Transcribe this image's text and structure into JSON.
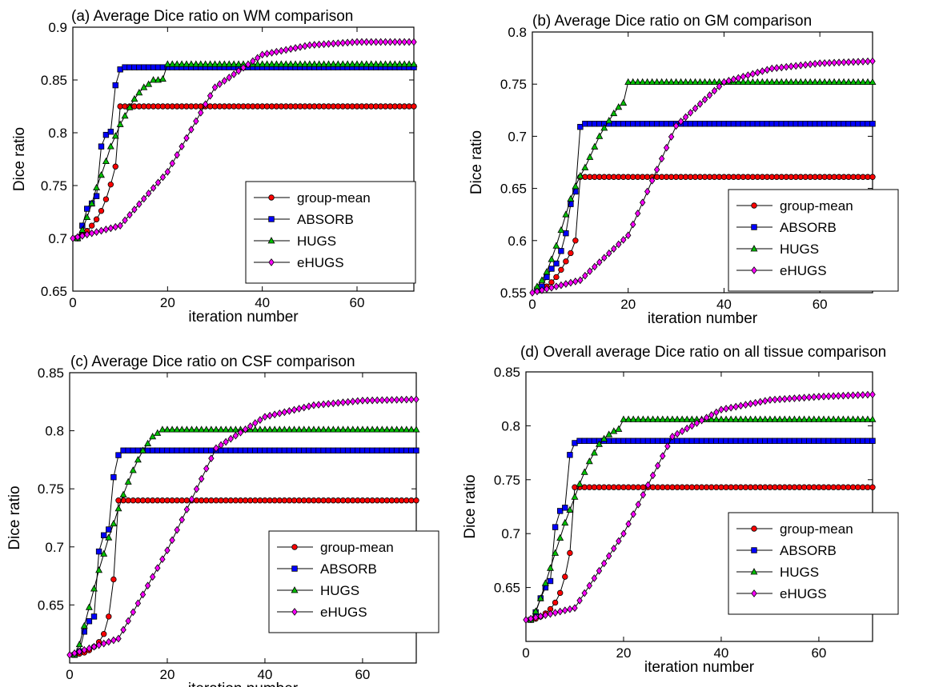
{
  "chart_data": [
    {
      "type": "line",
      "title": "(a) Average Dice ratio on WM comparison",
      "xlabel": "iteration number",
      "ylabel": "Dice ratio",
      "xlim": [
        0,
        72
      ],
      "ylim": [
        0.65,
        0.9
      ],
      "xticks": [
        "0",
        "20",
        "40",
        "60"
      ],
      "yticks": [
        "0.65",
        "0.7",
        "0.75",
        "0.8",
        "0.85",
        "0.9"
      ],
      "legend_position": "lower-right",
      "series": [
        {
          "name": "group-mean",
          "color": "#ff0000",
          "marker": "circle",
          "x": [
            1,
            2,
            3,
            4,
            5,
            6,
            7,
            8,
            9,
            10,
            72
          ],
          "y": [
            0.7,
            0.703,
            0.707,
            0.712,
            0.718,
            0.726,
            0.737,
            0.751,
            0.768,
            0.825,
            0.825
          ]
        },
        {
          "name": "ABSORB",
          "color": "#0000ff",
          "marker": "square",
          "x": [
            1,
            2,
            3,
            4,
            5,
            6,
            7,
            8,
            9,
            10,
            11,
            72
          ],
          "y": [
            0.7,
            0.712,
            0.728,
            0.733,
            0.74,
            0.787,
            0.798,
            0.801,
            0.845,
            0.86,
            0.862,
            0.862
          ]
        },
        {
          "name": "HUGS",
          "color": "#00c000",
          "marker": "triangle",
          "x": [
            1,
            2,
            3,
            4,
            5,
            6,
            7,
            8,
            9,
            10,
            11,
            12,
            13,
            14,
            15,
            16,
            17,
            18,
            19,
            20,
            72
          ],
          "y": [
            0.7,
            0.708,
            0.72,
            0.733,
            0.748,
            0.76,
            0.773,
            0.787,
            0.797,
            0.808,
            0.816,
            0.824,
            0.832,
            0.838,
            0.843,
            0.846,
            0.85,
            0.85,
            0.851,
            0.865,
            0.865
          ]
        },
        {
          "name": "eHUGS",
          "color": "#ff00ff",
          "marker": "diamond",
          "x": [
            0,
            10,
            20,
            30,
            40,
            50,
            60,
            72
          ],
          "y": [
            0.7,
            0.712,
            0.763,
            0.843,
            0.874,
            0.883,
            0.886,
            0.886
          ]
        }
      ]
    },
    {
      "type": "line",
      "title": "(b) Average Dice ratio on GM comparison",
      "xlabel": "iteration number",
      "ylabel": "Dice ratio",
      "xlim": [
        0,
        71
      ],
      "ylim": [
        0.55,
        0.8
      ],
      "xticks": [
        "0",
        "20",
        "40",
        "60"
      ],
      "yticks": [
        "0.55",
        "0.6",
        "0.65",
        "0.7",
        "0.75",
        "0.8"
      ],
      "legend_position": "lower-right",
      "series": [
        {
          "name": "group-mean",
          "color": "#ff0000",
          "marker": "circle",
          "x": [
            1,
            2,
            3,
            4,
            5,
            6,
            7,
            8,
            9,
            10,
            71
          ],
          "y": [
            0.552,
            0.554,
            0.556,
            0.56,
            0.565,
            0.572,
            0.58,
            0.588,
            0.6,
            0.661,
            0.661
          ]
        },
        {
          "name": "ABSORB",
          "color": "#0000ff",
          "marker": "square",
          "x": [
            1,
            2,
            3,
            4,
            5,
            6,
            7,
            8,
            9,
            10,
            11,
            71
          ],
          "y": [
            0.553,
            0.556,
            0.565,
            0.573,
            0.578,
            0.59,
            0.607,
            0.635,
            0.647,
            0.709,
            0.712,
            0.712
          ]
        },
        {
          "name": "HUGS",
          "color": "#00c000",
          "marker": "triangle",
          "x": [
            1,
            2,
            3,
            4,
            5,
            6,
            7,
            8,
            9,
            10,
            11,
            12,
            13,
            14,
            15,
            16,
            17,
            18,
            19,
            20,
            71
          ],
          "y": [
            0.556,
            0.562,
            0.57,
            0.582,
            0.595,
            0.61,
            0.625,
            0.64,
            0.652,
            0.662,
            0.67,
            0.68,
            0.69,
            0.7,
            0.708,
            0.715,
            0.722,
            0.728,
            0.732,
            0.752,
            0.752
          ]
        },
        {
          "name": "eHUGS",
          "color": "#ff00ff",
          "marker": "diamond",
          "x": [
            0,
            10,
            20,
            30,
            40,
            50,
            60,
            71
          ],
          "y": [
            0.55,
            0.562,
            0.605,
            0.71,
            0.752,
            0.765,
            0.77,
            0.772
          ]
        }
      ]
    },
    {
      "type": "line",
      "title": "(c) Average Dice ratio on CSF comparison",
      "xlabel": "iteration number",
      "ylabel": "Dice ratio",
      "xlim": [
        0,
        71
      ],
      "ylim": [
        0.6,
        0.85
      ],
      "xticks": [
        "0",
        "20",
        "40",
        "60"
      ],
      "yticks": [
        "0.65",
        "0.7",
        "0.75",
        "0.8",
        "0.85"
      ],
      "legend_position": "lower-right",
      "series": [
        {
          "name": "group-mean",
          "color": "#ff0000",
          "marker": "circle",
          "x": [
            1,
            2,
            3,
            4,
            5,
            6,
            7,
            8,
            9,
            10,
            71
          ],
          "y": [
            0.607,
            0.608,
            0.609,
            0.611,
            0.614,
            0.618,
            0.625,
            0.64,
            0.672,
            0.74,
            0.74
          ]
        },
        {
          "name": "ABSORB",
          "color": "#0000ff",
          "marker": "square",
          "x": [
            1,
            2,
            3,
            4,
            5,
            6,
            7,
            8,
            9,
            10,
            11,
            71
          ],
          "y": [
            0.607,
            0.61,
            0.627,
            0.636,
            0.64,
            0.696,
            0.71,
            0.715,
            0.76,
            0.779,
            0.783,
            0.783
          ]
        },
        {
          "name": "HUGS",
          "color": "#00c000",
          "marker": "triangle",
          "x": [
            1,
            2,
            3,
            4,
            5,
            6,
            7,
            8,
            9,
            10,
            11,
            12,
            13,
            14,
            15,
            16,
            17,
            18,
            19,
            20,
            71
          ],
          "y": [
            0.607,
            0.616,
            0.632,
            0.648,
            0.664,
            0.68,
            0.694,
            0.708,
            0.72,
            0.733,
            0.745,
            0.756,
            0.766,
            0.775,
            0.783,
            0.789,
            0.795,
            0.798,
            0.801,
            0.801,
            0.801
          ]
        },
        {
          "name": "eHUGS",
          "color": "#ff00ff",
          "marker": "diamond",
          "x": [
            0,
            10,
            20,
            30,
            40,
            50,
            60,
            71
          ],
          "y": [
            0.607,
            0.621,
            0.697,
            0.785,
            0.812,
            0.822,
            0.826,
            0.827
          ]
        }
      ]
    },
    {
      "type": "line",
      "title": "(d) Overall average Dice ratio on all tissue comparison",
      "xlabel": "iteration number",
      "ylabel": "Dice ratio",
      "xlim": [
        0,
        71
      ],
      "ylim": [
        0.6,
        0.85
      ],
      "xticks": [
        "0",
        "20",
        "40",
        "60"
      ],
      "yticks": [
        "0.65",
        "0.7",
        "0.75",
        "0.8",
        "0.85"
      ],
      "legend_position": "lower-right",
      "series": [
        {
          "name": "group-mean",
          "color": "#ff0000",
          "marker": "circle",
          "x": [
            1,
            2,
            3,
            4,
            5,
            6,
            7,
            8,
            9,
            10,
            71
          ],
          "y": [
            0.62,
            0.621,
            0.623,
            0.626,
            0.63,
            0.636,
            0.645,
            0.66,
            0.682,
            0.743,
            0.743
          ]
        },
        {
          "name": "ABSORB",
          "color": "#0000ff",
          "marker": "square",
          "x": [
            1,
            2,
            3,
            4,
            5,
            6,
            7,
            8,
            9,
            10,
            11,
            71
          ],
          "y": [
            0.62,
            0.627,
            0.64,
            0.65,
            0.656,
            0.706,
            0.721,
            0.724,
            0.773,
            0.784,
            0.786,
            0.786
          ]
        },
        {
          "name": "HUGS",
          "color": "#00c000",
          "marker": "triangle",
          "x": [
            1,
            2,
            3,
            4,
            5,
            6,
            7,
            8,
            9,
            10,
            11,
            12,
            13,
            14,
            15,
            16,
            17,
            18,
            19,
            20,
            71
          ],
          "y": [
            0.62,
            0.628,
            0.64,
            0.654,
            0.668,
            0.682,
            0.696,
            0.71,
            0.722,
            0.734,
            0.746,
            0.757,
            0.767,
            0.775,
            0.783,
            0.788,
            0.792,
            0.795,
            0.797,
            0.806,
            0.806
          ]
        },
        {
          "name": "eHUGS",
          "color": "#ff00ff",
          "marker": "diamond",
          "x": [
            0,
            10,
            20,
            30,
            40,
            50,
            60,
            71
          ],
          "y": [
            0.62,
            0.631,
            0.7,
            0.79,
            0.815,
            0.824,
            0.827,
            0.829
          ]
        }
      ]
    }
  ]
}
